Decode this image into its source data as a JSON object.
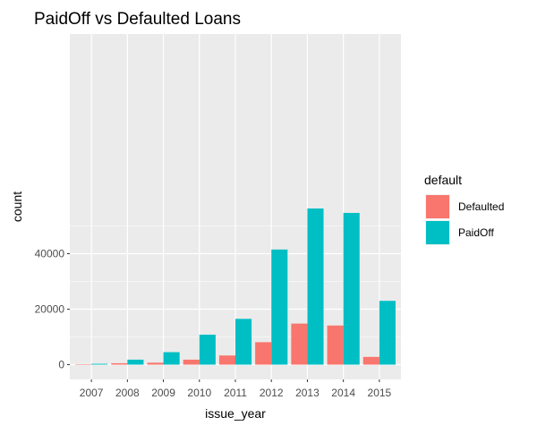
{
  "chart_data": {
    "type": "bar",
    "title": "PaidOff vs Defaulted Loans",
    "xlabel": "issue_year",
    "ylabel": "count",
    "categories": [
      "2007",
      "2008",
      "2009",
      "2010",
      "2011",
      "2012",
      "2013",
      "2014",
      "2015"
    ],
    "series": [
      {
        "name": "Defaulted",
        "color": "#F8766D",
        "values": [
          100,
          500,
          700,
          1800,
          3300,
          8100,
          14800,
          14100,
          2800
        ]
      },
      {
        "name": "PaidOff",
        "color": "#00BFC4",
        "values": [
          300,
          1800,
          4500,
          10800,
          16500,
          41500,
          56300,
          54700,
          23000
        ]
      }
    ],
    "ylim": [
      0,
      60000
    ],
    "yticks": [
      0,
      20000,
      40000
    ],
    "yticks_labels": [
      "0",
      "20000",
      "40000"
    ],
    "legend": {
      "title": "default",
      "position": "right"
    },
    "grid": true,
    "panel_background": "#EBEBEB",
    "grid_color": "#FFFFFF"
  }
}
